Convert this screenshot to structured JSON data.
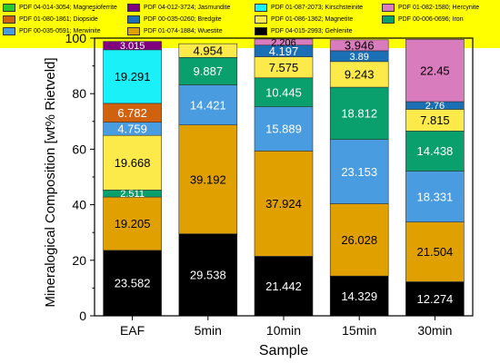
{
  "chart_data": {
    "type": "bar",
    "stacked": true,
    "categories": [
      "EAF",
      "5min",
      "10min",
      "15min",
      "30min"
    ],
    "xlabel": "Sample",
    "ylabel": "Mineralogical Composition [wt% Rietveld]",
    "ylim": [
      0,
      100
    ],
    "yticks": [
      0,
      20,
      40,
      60,
      80,
      100
    ],
    "grid": false,
    "legend_position": "top",
    "series": [
      {
        "name": "PDF 04-015-2993; Gehlenite",
        "color": "#000000",
        "text_color": "#ffffff",
        "values": [
          23.582,
          29.538,
          21.442,
          14.329,
          12.274
        ],
        "labels": [
          "23.582",
          "29.538",
          "21.442",
          "14.329",
          "12.274"
        ]
      },
      {
        "name": "PDF 01-074-1884; Wuestite",
        "color": "#e0a000",
        "text_color": "#000000",
        "values": [
          19.205,
          39.192,
          37.924,
          26.028,
          21.504
        ],
        "labels": [
          "19.205",
          "39.192",
          "37.924",
          "26.028",
          "21.504"
        ]
      },
      {
        "name": "PDF 00-006-0696; Iron",
        "color": "#0aa06e",
        "text_color": "#ffffff",
        "values": [
          2.511,
          0,
          0,
          0,
          0
        ],
        "labels": [
          "2.511",
          "",
          "",
          "",
          ""
        ]
      },
      {
        "name": "PDF 01-086-1362; Magnetite",
        "color": "#fbea4a",
        "text_color": "#000000",
        "values": [
          19.668,
          0,
          0,
          0,
          0
        ],
        "labels": [
          "19.668",
          "",
          "",
          "",
          ""
        ]
      },
      {
        "name": "PDF 00-035-0591; Merwinite",
        "color": "#4a9ce0",
        "text_color": "#ffffff",
        "values": [
          4.759,
          14.421,
          15.889,
          23.153,
          18.331
        ],
        "labels": [
          "4.759",
          "14.421",
          "15.889",
          "23.153",
          "18.331"
        ]
      },
      {
        "name": "PDF 01-080-1861; Diopside",
        "color": "#d0620f",
        "text_color": "#ffffff",
        "values": [
          6.782,
          0,
          0,
          0,
          0
        ],
        "labels": [
          "6.782",
          "",
          "",
          "",
          ""
        ]
      },
      {
        "name": "PDF 00-006-0696; Iron",
        "color": "#0aa06e",
        "text_color": "#ffffff",
        "values": [
          0,
          9.887,
          10.445,
          18.812,
          14.438
        ],
        "labels": [
          "",
          "9.887",
          "10.445",
          "18.812",
          "14.438"
        ]
      },
      {
        "name": "PDF 01-086-1362; Magnetite",
        "color": "#fbea4a",
        "text_color": "#000000",
        "values": [
          0,
          4.954,
          7.575,
          9.243,
          7.815
        ],
        "labels": [
          "",
          "4.954",
          "7.575",
          "9.243",
          "7.815"
        ]
      },
      {
        "name": "PDF 00-035-0260; Bredgite",
        "color": "#1a6fb5",
        "text_color": "#ffffff",
        "values": [
          0,
          0,
          4.197,
          3.89,
          2.76
        ],
        "labels": [
          "",
          "",
          "4.197",
          "3.89",
          "2.76"
        ]
      },
      {
        "name": "PDF 01-087-2073; Kirschsteinite",
        "color": "#19f0f8",
        "text_color": "#000000",
        "values": [
          19.291,
          0,
          0,
          0,
          0
        ],
        "labels": [
          "19.291",
          "",
          "",
          "",
          ""
        ]
      },
      {
        "name": "PDF 04-012-3724; Jasmundite",
        "color": "#800080",
        "text_color": "#ffffff",
        "values": [
          3.015,
          0,
          0,
          0,
          0
        ],
        "labels": [
          "3.015",
          "",
          "",
          "",
          ""
        ]
      },
      {
        "name": "PDF 01-082-1580; Hercynite",
        "color": "#d97cbd",
        "text_color": "#000000",
        "values": [
          0,
          0,
          2.206,
          3.946,
          22.45
        ],
        "labels": [
          "",
          "",
          "2.206",
          "3.946",
          "22.45"
        ]
      }
    ]
  },
  "legend": [
    {
      "label": "PDF 04-014-3054; Magnesioferrite",
      "color": "#2cc92c"
    },
    {
      "label": "PDF 04-012-3724; Jasmundite",
      "color": "#800080"
    },
    {
      "label": "PDF 01-087-2073; Kirschsteinite",
      "color": "#19f0f8"
    },
    {
      "label": "PDF 01-082-1580; Hercynite",
      "color": "#d97cbd"
    },
    {
      "label": "PDF 01-080-1861; Diopside",
      "color": "#d0620f"
    },
    {
      "label": "PDF 00-035-0260; Bredgite",
      "color": "#1a6fb5"
    },
    {
      "label": "PDF 01-086-1362; Magnetite",
      "color": "#fbea4a"
    },
    {
      "label": "PDF 00-006-0696; Iron",
      "color": "#0aa06e"
    },
    {
      "label": "PDF 00-035-0591; Merwinite",
      "color": "#4a9ce0"
    },
    {
      "label": "PDF 01-074-1884; Wuestite",
      "color": "#e0a000"
    },
    {
      "label": "PDF 04-015-2993; Gehlenite",
      "color": "#000000"
    }
  ]
}
